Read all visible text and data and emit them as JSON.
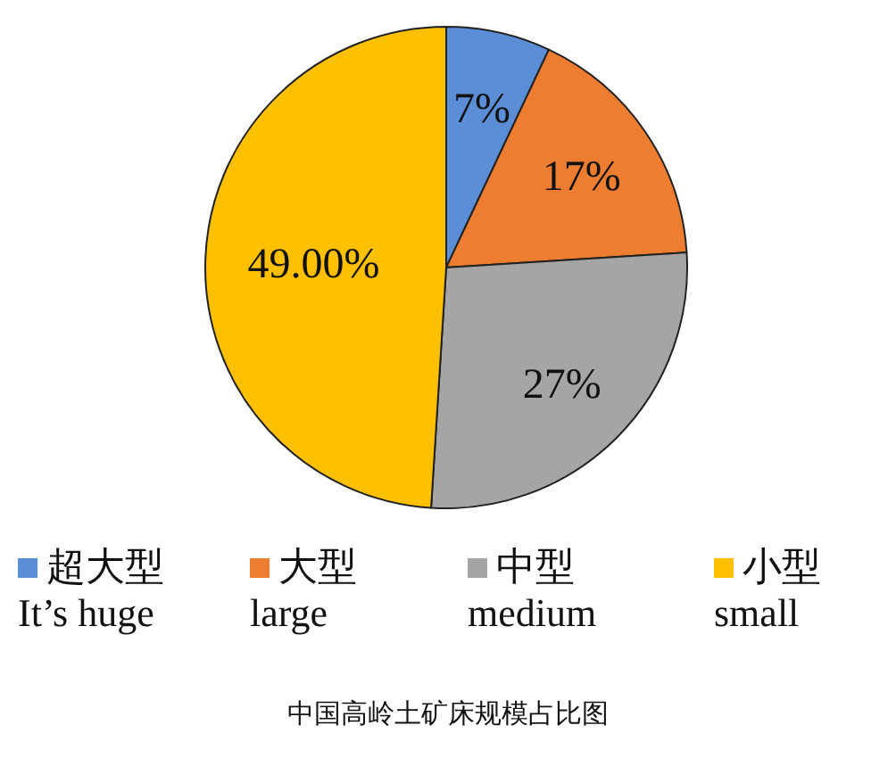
{
  "chart_data": {
    "type": "pie",
    "title": "中国高岭土矿床规模占比图",
    "categories": [
      "超大型\nIt’s huge",
      "大型\nlarge",
      "中型\nmedium",
      "小型\nsmall"
    ],
    "values": [
      7,
      17,
      27,
      49
    ],
    "value_labels": [
      "7%",
      "17%",
      "27%",
      "49.00%"
    ],
    "colors": [
      "#5b8ed6",
      "#ed7d31",
      "#a5a5a5",
      "#ffc000"
    ],
    "legend": "bottom"
  }
}
